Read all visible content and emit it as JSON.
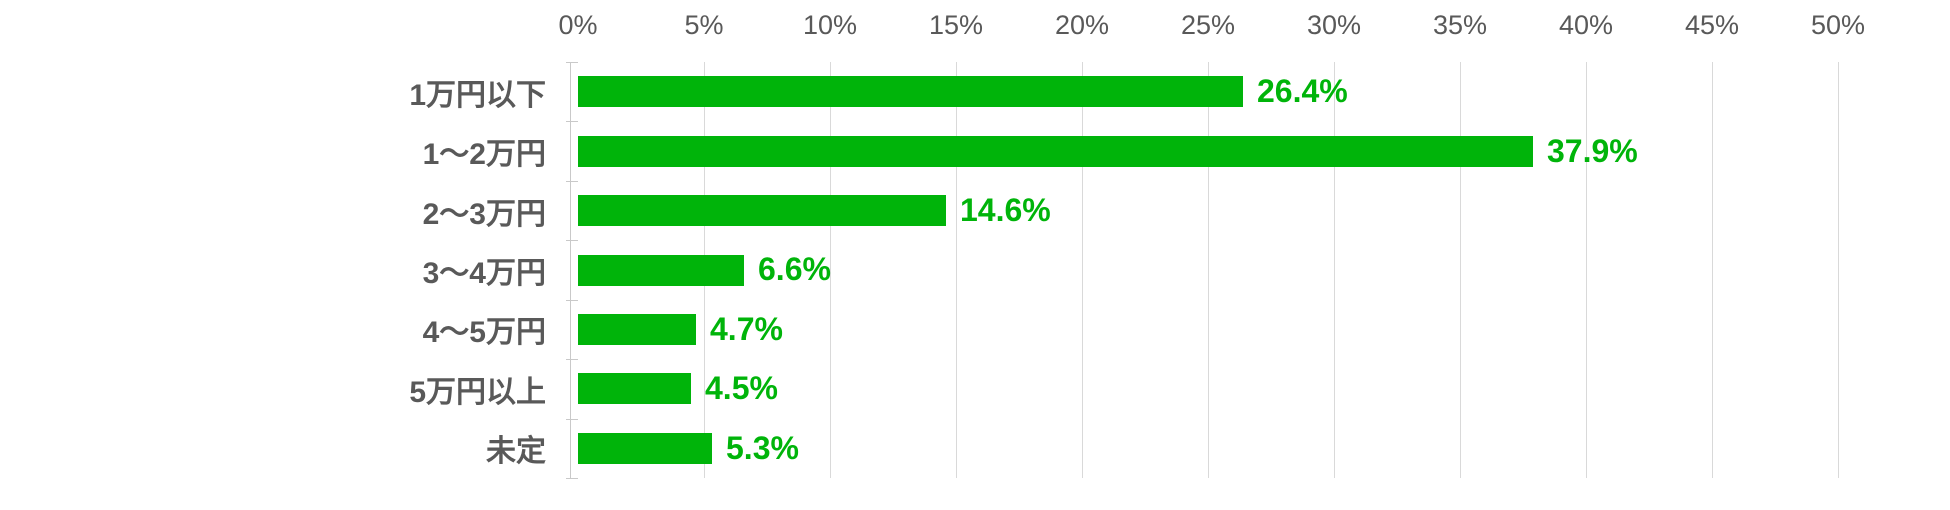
{
  "chart_data": {
    "type": "bar",
    "orientation": "horizontal",
    "title": "",
    "xlabel": "",
    "ylabel": "",
    "categories": [
      "1万円以下",
      "1〜2万円",
      "2〜3万円",
      "3〜4万円",
      "4〜5万円",
      "5万円以上",
      "未定"
    ],
    "values": [
      26.4,
      37.9,
      14.6,
      6.6,
      4.7,
      4.5,
      5.3
    ],
    "value_labels": [
      "26.4%",
      "37.9%",
      "14.6%",
      "6.6%",
      "4.7%",
      "4.5%",
      "5.3%"
    ],
    "xlim": [
      0,
      50
    ],
    "x_tick_step": 5,
    "x_tick_labels": [
      "0%",
      "5%",
      "10%",
      "15%",
      "20%",
      "25%",
      "30%",
      "35%",
      "40%",
      "45%",
      "50%"
    ],
    "grid": true,
    "legend": false,
    "colors": {
      "bar": "#00b40a",
      "value_label": "#00b40a",
      "category_label": "#595959",
      "axis_label": "#595959",
      "gridline": "#d9d9d9",
      "axis_line": "#c9c9c9",
      "background": "#ffffff"
    }
  }
}
